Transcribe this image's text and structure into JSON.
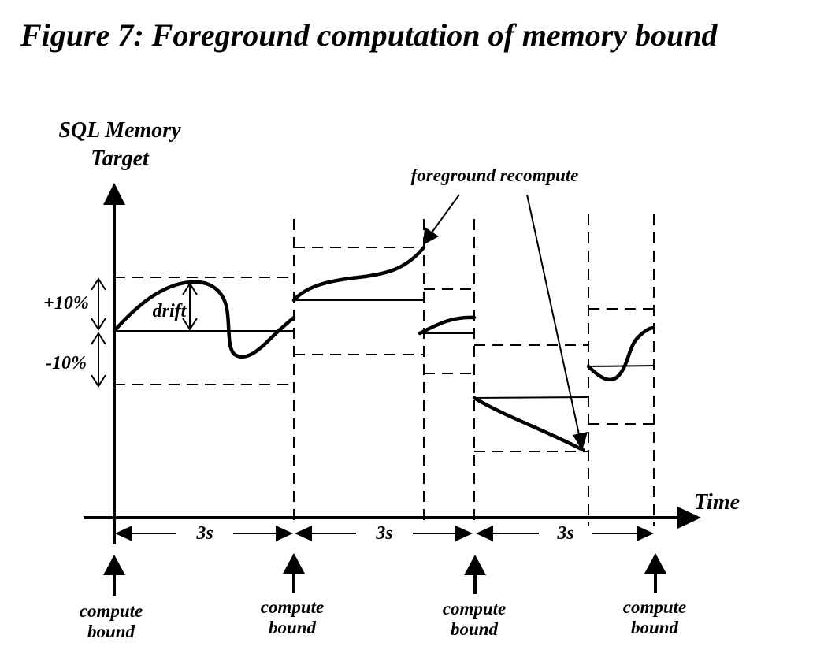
{
  "figure": {
    "title": "Figure 7: Foreground computation of memory bound",
    "y_axis_label_line1": "SQL Memory",
    "y_axis_label_line2": "Target",
    "x_axis_label": "Time",
    "plus_label": "+10%",
    "minus_label": "-10%",
    "drift_label": "drift",
    "callout_label": "foreground recompute",
    "interval_labels": [
      "3s",
      "3s",
      "3s"
    ],
    "event_labels": [
      {
        "line1": "compute",
        "line2": "bound"
      },
      {
        "line1": "compute",
        "line2": "bound"
      },
      {
        "line1": "compute",
        "line2": "bound"
      },
      {
        "line1": "compute",
        "line2": "bound"
      }
    ]
  }
}
